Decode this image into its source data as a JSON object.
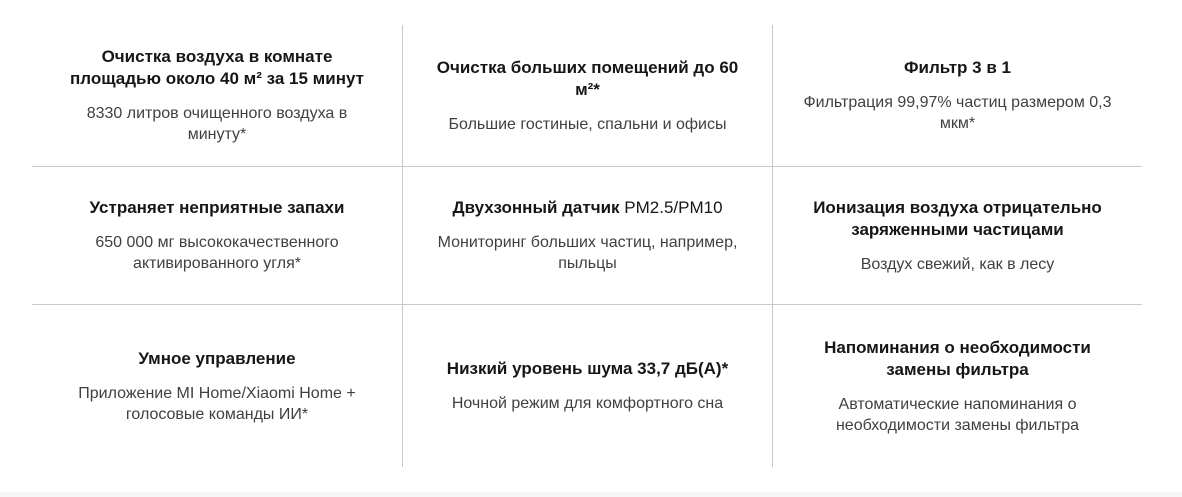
{
  "page": {
    "background_color": "#ffffff",
    "divider_color": "#c9c9c9",
    "title_color": "#161616",
    "subtitle_color": "#404040",
    "bottom_strip_color": "#f7f7f7"
  },
  "feature_grid": {
    "cells": [
      {
        "title": "Очистка воздуха в комнате площадью около 40 м² за 15 минут",
        "subtitle": "8330 литров очищенного воздуха в минуту*"
      },
      {
        "title": "Очистка больших помещений до 60 м²*",
        "subtitle": "Большие гостиные, спальни и офисы"
      },
      {
        "title": "Фильтр 3 в 1",
        "subtitle": "Фильтрация 99,97% частиц размером 0,3 мкм*"
      },
      {
        "title": "Устраняет неприятные запахи",
        "subtitle": "650 000 мг высококачественного активированного угля*"
      },
      {
        "title": "Двухзонный датчик PM2.5/PM10",
        "subtitle": "Мониторинг больших частиц, например, пыльцы"
      },
      {
        "title": "Ионизация воздуха отрицательно заряженными частицами",
        "subtitle": "Воздух свежий, как в лесу"
      },
      {
        "title": "Умное управление",
        "subtitle": "Приложение MI Home/Xiaomi Home + голосовые команды ИИ*"
      },
      {
        "title": "Низкий уровень шума 33,7 дБ(А)*",
        "subtitle": "Ночной режим для комфортного сна"
      },
      {
        "title": "Напоминания о необходимости замены фильтра",
        "subtitle": "Автоматические напоминания о необходимости замены фильтра"
      }
    ]
  }
}
